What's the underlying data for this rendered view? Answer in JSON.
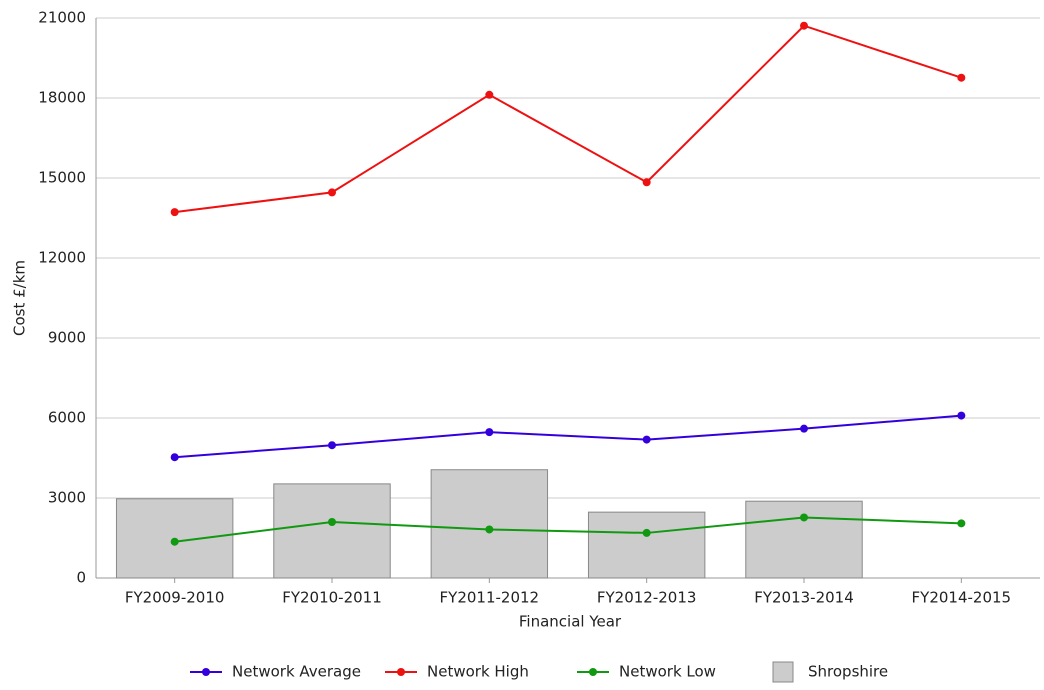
{
  "chart_data": {
    "type": "bar",
    "x_label": "Financial Year",
    "y_label": "Cost £/km",
    "categories": [
      "FY2009-2010",
      "FY2010-2011",
      "FY2011-2012",
      "FY2012-2013",
      "FY2013-2014",
      "FY2014-2015"
    ],
    "series": [
      {
        "name": "Network Average",
        "type": "line",
        "color": "#3300dd",
        "values": [
          4530,
          4980,
          5470,
          5190,
          5600,
          6090
        ]
      },
      {
        "name": "Network High",
        "type": "line",
        "color": "#ee1111",
        "values": [
          13720,
          14460,
          18120,
          14840,
          20710,
          18760
        ]
      },
      {
        "name": "Network Low",
        "type": "line",
        "color": "#119911",
        "values": [
          1360,
          2100,
          1820,
          1690,
          2270,
          2050
        ]
      },
      {
        "name": "Shropshire",
        "type": "bar",
        "color": "#cccccc",
        "values": [
          2970,
          3530,
          4060,
          2470,
          2880,
          null
        ]
      }
    ],
    "ylim": [
      0,
      21000
    ],
    "yticks": [
      0,
      3000,
      6000,
      9000,
      12000,
      15000,
      18000,
      21000
    ],
    "grid": true,
    "legend": "bottom"
  }
}
